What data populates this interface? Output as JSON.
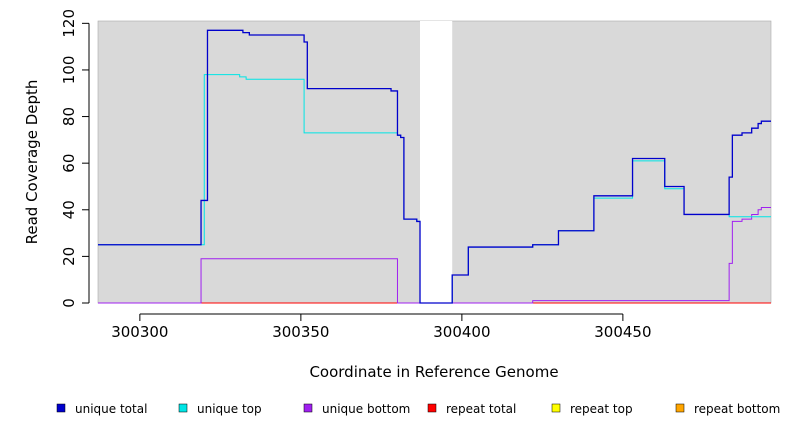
{
  "chart_data": {
    "type": "line",
    "title": "",
    "xlabel": "Coordinate in Reference Genome",
    "ylabel": "Read Coverage Depth",
    "xlim": [
      300287,
      300496
    ],
    "ylim": [
      0,
      121
    ],
    "x_ticks": [
      300300,
      300350,
      300400,
      300450
    ],
    "y_ticks": [
      0,
      20,
      40,
      60,
      80,
      100,
      120
    ],
    "background": "#d9d9d9",
    "gap_region": [
      300387,
      300397
    ],
    "grid": false,
    "legend_position": "bottom",
    "series": [
      {
        "name": "unique total",
        "color": "#0000cc",
        "points": [
          [
            300287,
            25
          ],
          [
            300319,
            25
          ],
          [
            300319,
            44
          ],
          [
            300321,
            44
          ],
          [
            300321,
            117
          ],
          [
            300332,
            117
          ],
          [
            300332,
            116
          ],
          [
            300334,
            116
          ],
          [
            300334,
            115
          ],
          [
            300351,
            115
          ],
          [
            300351,
            112
          ],
          [
            300352,
            112
          ],
          [
            300352,
            92
          ],
          [
            300378,
            92
          ],
          [
            300378,
            91
          ],
          [
            300380,
            91
          ],
          [
            300380,
            72
          ],
          [
            300381,
            72
          ],
          [
            300381,
            71
          ],
          [
            300382,
            71
          ],
          [
            300382,
            36
          ],
          [
            300386,
            36
          ],
          [
            300386,
            35
          ],
          [
            300387,
            35
          ],
          [
            300387,
            0
          ],
          [
            300397,
            0
          ],
          [
            300397,
            12
          ],
          [
            300402,
            12
          ],
          [
            300402,
            24
          ],
          [
            300422,
            24
          ],
          [
            300422,
            25
          ],
          [
            300430,
            25
          ],
          [
            300430,
            31
          ],
          [
            300441,
            31
          ],
          [
            300441,
            46
          ],
          [
            300453,
            46
          ],
          [
            300453,
            62
          ],
          [
            300463,
            62
          ],
          [
            300463,
            50
          ],
          [
            300469,
            50
          ],
          [
            300469,
            38
          ],
          [
            300483,
            38
          ],
          [
            300483,
            54
          ],
          [
            300484,
            54
          ],
          [
            300484,
            72
          ],
          [
            300487,
            72
          ],
          [
            300487,
            73
          ],
          [
            300490,
            73
          ],
          [
            300490,
            75
          ],
          [
            300492,
            75
          ],
          [
            300492,
            77
          ],
          [
            300493,
            77
          ],
          [
            300493,
            78
          ],
          [
            300496,
            78
          ]
        ]
      },
      {
        "name": "unique top",
        "color": "#00e5e5",
        "points": [
          [
            300287,
            25
          ],
          [
            300320,
            25
          ],
          [
            300320,
            98
          ],
          [
            300331,
            98
          ],
          [
            300331,
            97
          ],
          [
            300333,
            97
          ],
          [
            300333,
            96
          ],
          [
            300351,
            96
          ],
          [
            300351,
            73
          ],
          [
            300380,
            73
          ],
          [
            300380,
            72
          ],
          [
            300381,
            72
          ],
          [
            300381,
            71
          ],
          [
            300382,
            71
          ],
          [
            300382,
            36
          ],
          [
            300386,
            36
          ],
          [
            300386,
            35
          ],
          [
            300387,
            35
          ],
          [
            300387,
            0
          ],
          [
            300397,
            0
          ],
          [
            300397,
            12
          ],
          [
            300402,
            12
          ],
          [
            300402,
            24
          ],
          [
            300422,
            24
          ],
          [
            300422,
            25
          ],
          [
            300430,
            25
          ],
          [
            300430,
            31
          ],
          [
            300441,
            31
          ],
          [
            300441,
            45
          ],
          [
            300453,
            45
          ],
          [
            300453,
            61
          ],
          [
            300463,
            61
          ],
          [
            300463,
            49
          ],
          [
            300469,
            49
          ],
          [
            300469,
            38
          ],
          [
            300483,
            38
          ],
          [
            300483,
            37
          ],
          [
            300496,
            37
          ]
        ]
      },
      {
        "name": "unique bottom",
        "color": "#a020f0",
        "points": [
          [
            300287,
            0
          ],
          [
            300319,
            0
          ],
          [
            300319,
            19
          ],
          [
            300380,
            19
          ],
          [
            300380,
            0
          ],
          [
            300422,
            0
          ],
          [
            300422,
            1
          ],
          [
            300483,
            1
          ],
          [
            300483,
            17
          ],
          [
            300484,
            17
          ],
          [
            300484,
            35
          ],
          [
            300487,
            35
          ],
          [
            300487,
            36
          ],
          [
            300490,
            36
          ],
          [
            300490,
            38
          ],
          [
            300492,
            38
          ],
          [
            300492,
            40
          ],
          [
            300493,
            40
          ],
          [
            300493,
            41
          ],
          [
            300496,
            41
          ]
        ]
      },
      {
        "name": "repeat total",
        "color": "#ff0000",
        "points": [
          [
            300287,
            0
          ],
          [
            300496,
            0
          ]
        ]
      },
      {
        "name": "repeat top",
        "color": "#ffff00",
        "points": [
          [
            300287,
            0
          ],
          [
            300496,
            0
          ]
        ]
      },
      {
        "name": "repeat bottom",
        "color": "#ffa500",
        "points": [
          [
            300287,
            0
          ],
          [
            300496,
            0
          ]
        ]
      }
    ]
  },
  "legend": [
    {
      "label": "unique total",
      "color": "#0000cc"
    },
    {
      "label": "unique top",
      "color": "#00e5e5"
    },
    {
      "label": "unique bottom",
      "color": "#a020f0"
    },
    {
      "label": "repeat total",
      "color": "#ff0000"
    },
    {
      "label": "repeat top",
      "color": "#ffff00"
    },
    {
      "label": "repeat bottom",
      "color": "#ffa500"
    }
  ]
}
